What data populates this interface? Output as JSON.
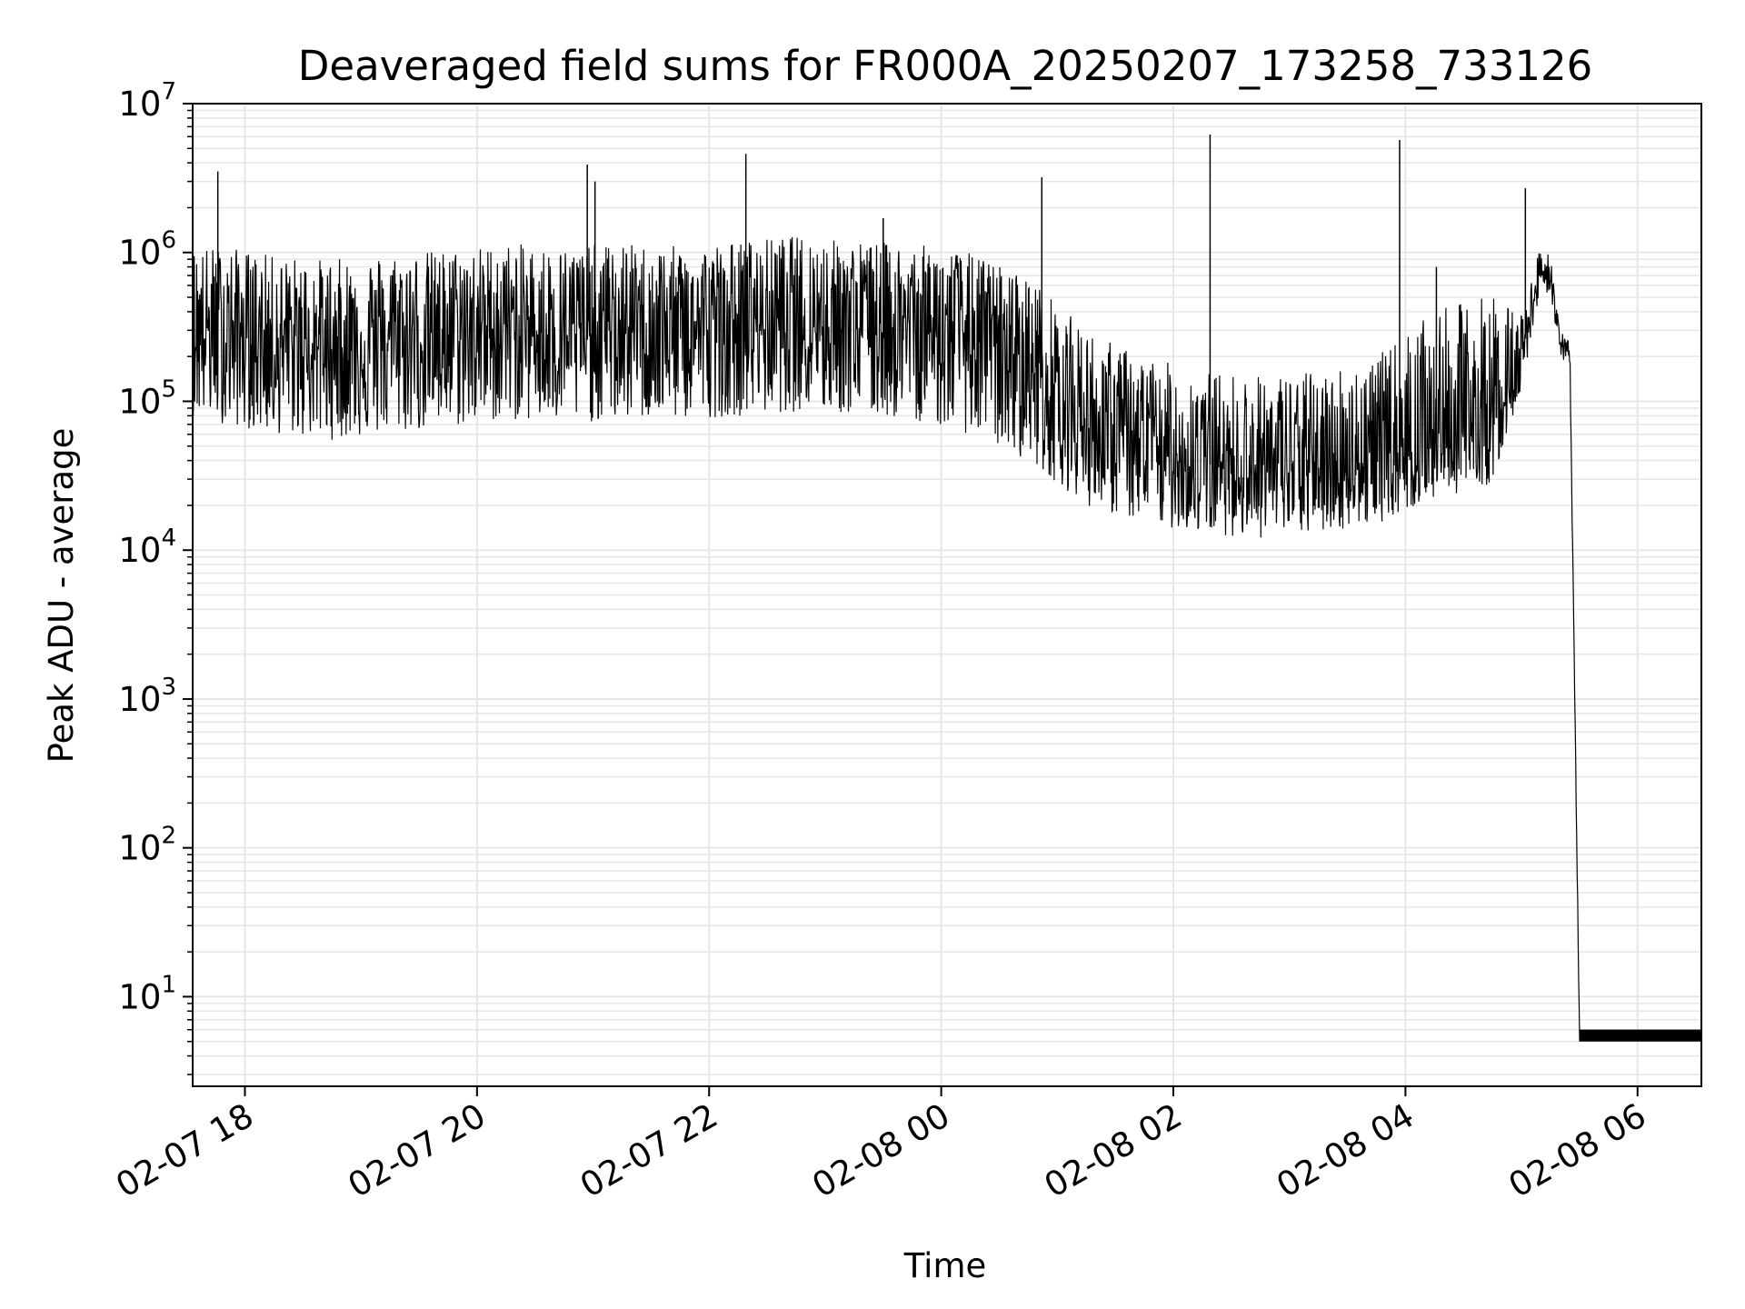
{
  "chart_data": {
    "type": "line",
    "title": "Deaveraged field sums for FR000A_20250207_173258_733126",
    "xlabel": "Time",
    "ylabel": "Peak ADU - average",
    "x_axis": {
      "kind": "datetime",
      "xlim": [
        "2025-02-07 17:33",
        "2025-02-08 06:33"
      ],
      "ticks": [
        {
          "value": "2025-02-07 18:00",
          "label": "02-07 18"
        },
        {
          "value": "2025-02-07 20:00",
          "label": "02-07 20"
        },
        {
          "value": "2025-02-07 22:00",
          "label": "02-07 22"
        },
        {
          "value": "2025-02-08 00:00",
          "label": "02-08 00"
        },
        {
          "value": "2025-02-08 02:00",
          "label": "02-08 02"
        },
        {
          "value": "2025-02-08 04:00",
          "label": "02-08 04"
        },
        {
          "value": "2025-02-08 06:00",
          "label": "02-08 06"
        }
      ],
      "tick_rotation_deg": 30
    },
    "y_axis": {
      "scale": "log",
      "ylim": [
        2.5,
        10000000
      ],
      "ticks": [
        {
          "value": 10,
          "base": "10",
          "exp": "1"
        },
        {
          "value": 100,
          "base": "10",
          "exp": "2"
        },
        {
          "value": 1000,
          "base": "10",
          "exp": "3"
        },
        {
          "value": 10000,
          "base": "10",
          "exp": "4"
        },
        {
          "value": 100000,
          "base": "10",
          "exp": "5"
        },
        {
          "value": 1000000,
          "base": "10",
          "exp": "6"
        },
        {
          "value": 10000000,
          "base": "10",
          "exp": "7"
        }
      ]
    },
    "grid": {
      "major": true,
      "minor_y": true,
      "color": "#e6e6e6"
    },
    "legend": "none",
    "line_color": "#000000",
    "series": [
      {
        "x": [
          "2025-02-07 17:33",
          "2025-02-07 17:50",
          "2025-02-07 18:15",
          "2025-02-07 18:45",
          "2025-02-07 19:15",
          "2025-02-07 19:45",
          "2025-02-07 20:15",
          "2025-02-07 20:45",
          "2025-02-07 21:15",
          "2025-02-07 21:45",
          "2025-02-07 22:15",
          "2025-02-07 22:45",
          "2025-02-07 23:15",
          "2025-02-07 23:45",
          "2025-02-08 00:15",
          "2025-02-08 00:45",
          "2025-02-08 01:15",
          "2025-02-08 01:45",
          "2025-02-08 02:15",
          "2025-02-08 02:45",
          "2025-02-08 03:15",
          "2025-02-08 03:45",
          "2025-02-08 04:15",
          "2025-02-08 04:45",
          "2025-02-08 05:00",
          "2025-02-08 05:10",
          "2025-02-08 05:15",
          "2025-02-08 05:20",
          "2025-02-08 05:25",
          "2025-02-08 05:30",
          "2025-02-08 06:33"
        ],
        "median": [
          300000,
          300000,
          250000,
          230000,
          260000,
          280000,
          320000,
          280000,
          300000,
          300000,
          330000,
          380000,
          350000,
          330000,
          280000,
          180000,
          70000,
          45000,
          38000,
          35000,
          34000,
          40000,
          55000,
          70000,
          200000,
          800000,
          700000,
          250000,
          200000,
          5,
          5
        ],
        "low": [
          80000,
          70000,
          60000,
          55000,
          60000,
          65000,
          75000,
          70000,
          75000,
          75000,
          80000,
          85000,
          80000,
          75000,
          60000,
          40000,
          20000,
          15000,
          13000,
          12000,
          13000,
          15000,
          22000,
          28000,
          120000,
          600000,
          500000,
          200000,
          170000,
          5,
          5
        ],
        "high": [
          1100000,
          1100000,
          950000,
          900000,
          1000000,
          1050000,
          1150000,
          1100000,
          1150000,
          1100000,
          1200000,
          1300000,
          1200000,
          1150000,
          1000000,
          700000,
          300000,
          200000,
          160000,
          150000,
          160000,
          200000,
          400000,
          550000,
          400000,
          1100000,
          1000000,
          300000,
          250000,
          6,
          6
        ]
      }
    ],
    "spikes": [
      {
        "x": "2025-02-07 17:46",
        "y": 3500000
      },
      {
        "x": "2025-02-07 20:57",
        "y": 3900000
      },
      {
        "x": "2025-02-07 21:01",
        "y": 3000000
      },
      {
        "x": "2025-02-07 22:19",
        "y": 4600000
      },
      {
        "x": "2025-02-07 23:30",
        "y": 1700000
      },
      {
        "x": "2025-02-08 00:52",
        "y": 3200000
      },
      {
        "x": "2025-02-08 02:19",
        "y": 6200000
      },
      {
        "x": "2025-02-08 03:57",
        "y": 5700000
      },
      {
        "x": "2025-02-08 04:16",
        "y": 800000
      },
      {
        "x": "2025-02-08 05:02",
        "y": 2700000
      }
    ]
  }
}
